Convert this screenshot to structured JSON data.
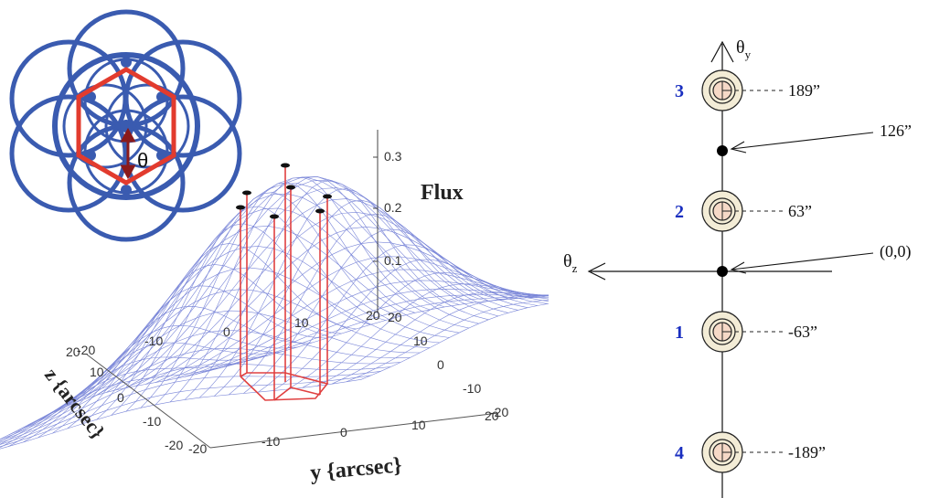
{
  "left_figure": {
    "theta_symbol": "θ",
    "flux_label": "Flux",
    "flux_ticks": [
      "0.3",
      "0.2",
      "0.1"
    ],
    "y_axis_label": "y {arcsec}",
    "z_axis_label": "z {arcsec}",
    "y_axis_ticks": [
      "-20",
      "-10",
      "0",
      "10",
      "20"
    ],
    "z_axis_ticks": [
      "-20",
      "-10",
      "0",
      "10",
      "20"
    ],
    "top_y_ticks": [
      "-20",
      "-10",
      "0",
      "10",
      "20"
    ],
    "right_z_ticks": [
      "20",
      "10",
      "0",
      "-10",
      "-20"
    ],
    "colors": {
      "circles": "#3a5bb0",
      "hexagon": "#e23b2e",
      "arrow": "#8b1a1a",
      "mesh": "#7a86d8",
      "pillars": "#e04040"
    }
  },
  "right_figure": {
    "theta_y_label": "θ",
    "theta_y_sub": "y",
    "theta_z_label": "θ",
    "theta_z_sub": "z",
    "markers": [
      {
        "num": "3",
        "value": "189”",
        "offset_arcsec": 189
      },
      {
        "num": "2",
        "value": "63”",
        "offset_arcsec": 63
      },
      {
        "num": "1",
        "value": "-63”",
        "offset_arcsec": -63
      },
      {
        "num": "4",
        "value": "-189”",
        "offset_arcsec": -189
      }
    ],
    "points": [
      {
        "label": "126”",
        "offset_arcsec": 126
      },
      {
        "label": "(0,0)",
        "offset_arcsec": 0
      }
    ],
    "colors": {
      "number": "#1a2fc0",
      "ring_fill": "#f3ecd6",
      "core_fill": "#f6d9c7"
    }
  }
}
